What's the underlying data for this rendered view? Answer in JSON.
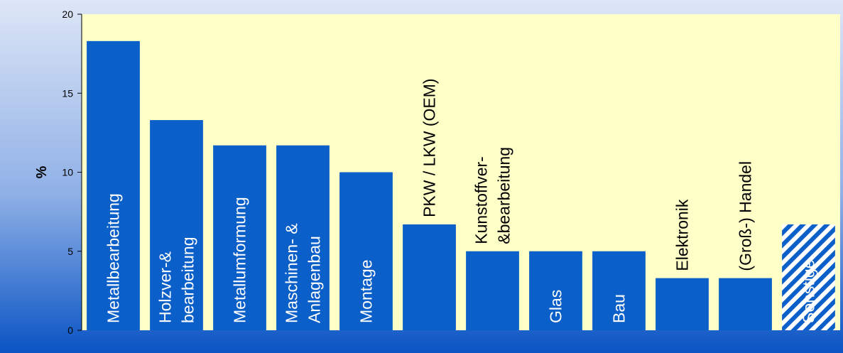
{
  "chart_data": {
    "type": "bar",
    "title": "",
    "xlabel": "",
    "ylabel": "%",
    "ylim": [
      0,
      20
    ],
    "yticks": [
      0,
      5,
      10,
      15,
      20
    ],
    "grid": false,
    "categories": [
      "Metallbearbeitung",
      "Holzver-& bearbeitung",
      "Metallumformung",
      "Maschinen- & Anlagenbau",
      "Montage",
      "PKW / LKW (OEM)",
      "Kunstoffver- &bearbeitung",
      "Glas",
      "Bau",
      "Elektronik",
      "(Groß-) Handel",
      "Sonstige"
    ],
    "series": [
      {
        "values": [
          18.3,
          13.3,
          11.7,
          11.7,
          10.0,
          6.7,
          5.0,
          5.0,
          5.0,
          3.3,
          3.3,
          6.7
        ]
      }
    ],
    "bar_labels": [
      [
        "Metallbearbeitung"
      ],
      [
        "Holzver-&",
        "bearbeitung"
      ],
      [
        "Metallumformung"
      ],
      [
        "Maschinen- &",
        "Anlagenbau"
      ],
      [
        "Montage"
      ],
      [
        "PKW / LKW (OEM)"
      ],
      [
        "Kunstoffver-",
        "&bearbeitung"
      ],
      [
        "Glas"
      ],
      [
        "Bau"
      ],
      [
        "Elektronik"
      ],
      [
        "(Groß-) Handel"
      ],
      [
        "Sonstige"
      ]
    ],
    "hatched_categories": [
      "Sonstige"
    ],
    "colors": {
      "bar": "#0a5fc8",
      "plot_background": "#ffffc8",
      "page_gradient_top": "#dde6f6",
      "page_gradient_bottom": "#0a54c4",
      "label_inside": "#ffffff",
      "label_above": "#000000"
    }
  }
}
